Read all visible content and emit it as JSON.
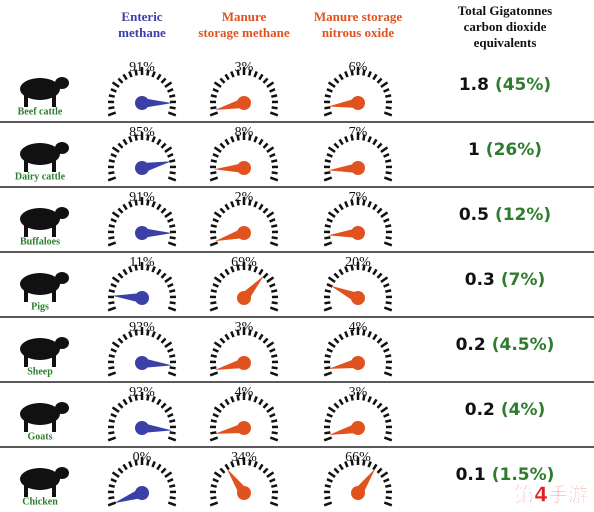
{
  "chart_data": {
    "type": "gauge",
    "title": "Total Gigatonnes carbon dioxide equivalents",
    "categories": [
      "Beef cattle",
      "Dairy cattle",
      "Buffaloes",
      "Pigs",
      "Sheep",
      "Goats",
      "Chicken"
    ],
    "category_color": "#2e7d2e",
    "ylim": [
      0,
      100
    ],
    "series": [
      {
        "name": "Enteric methane",
        "color": "#3b3fa8",
        "values": [
          91,
          85,
          91,
          11,
          93,
          93,
          0
        ],
        "value_labels": [
          "91%",
          "85%",
          "91%",
          "11%",
          "93%",
          "93%",
          "0%"
        ]
      },
      {
        "name": "Manure storage methane",
        "color": "#e0531f",
        "values": [
          3,
          8,
          2,
          69,
          3,
          4,
          34
        ],
        "value_labels": [
          "3%",
          "8%",
          "2%",
          "69%",
          "3%",
          "4%",
          "34%"
        ]
      },
      {
        "name": "Manure storage nitrous oxide",
        "color": "#e0531f",
        "values": [
          6,
          7,
          7,
          20,
          4,
          3,
          66
        ],
        "value_labels": [
          "6%",
          "7%",
          "7%",
          "20%",
          "4%",
          "3%",
          "66%"
        ]
      }
    ],
    "totals": {
      "values": [
        1.8,
        1,
        0.5,
        0.3,
        0.2,
        0.2,
        0.1
      ]
    },
    "shares": {
      "color": "#2e7d2e",
      "values": [
        45,
        26,
        12,
        7,
        4.5,
        4,
        1.5
      ],
      "value_labels": [
        "(45%)",
        "(26%)",
        "(12%)",
        "(7%)",
        "(4.5%)",
        "(4%)",
        "(1.5%)"
      ]
    },
    "watermark": "第4手游"
  }
}
